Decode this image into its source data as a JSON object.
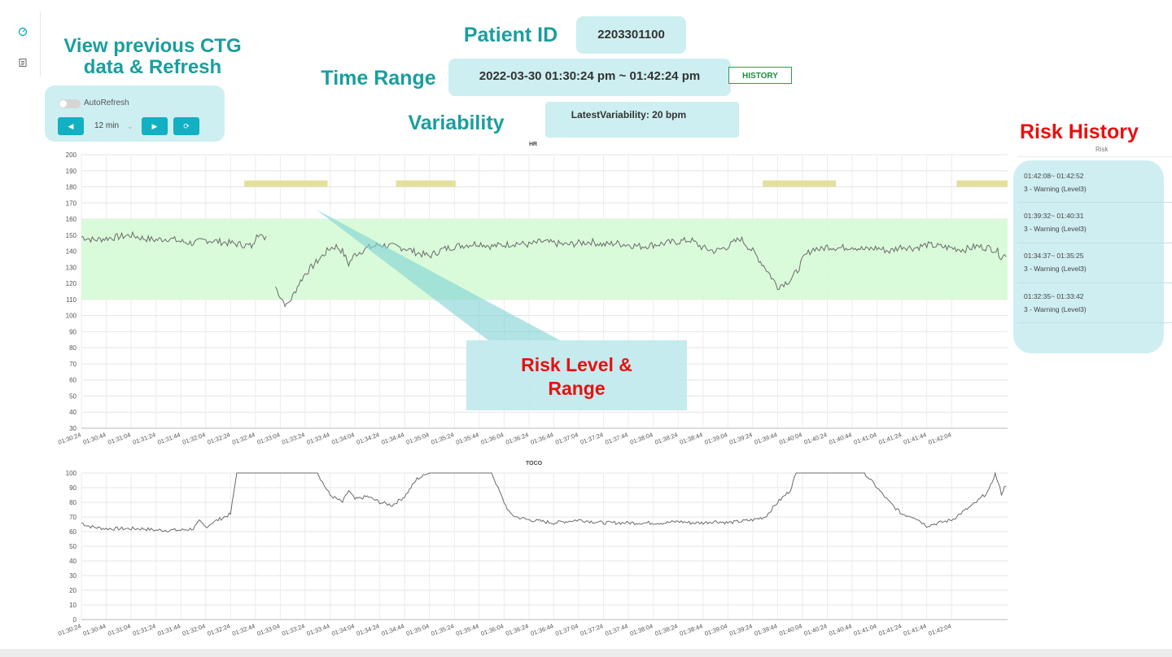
{
  "sidebar": {
    "icons": [
      "dashboard-icon",
      "document-icon"
    ]
  },
  "annotations": {
    "view_previous": "View previous CTG data & Refresh",
    "view_previous_line1": "View previous CTG",
    "view_previous_line2": "data & Refresh",
    "patient_id_label": "Patient ID",
    "time_range_label": "Time Range",
    "variability_label": "Variability",
    "risk_history_label": "Risk History",
    "risk_level_line1": "Risk Level &",
    "risk_level_line2": "Range"
  },
  "patient": {
    "id": "2203301100",
    "time_range": "2022-03-30 01:30:24 pm ~ 01:42:24 pm",
    "history_button": "HISTORY",
    "variability": "LatestVariability: 20 bpm"
  },
  "controls": {
    "autorefresh_label": "AutoRefresh",
    "autorefresh_on": false,
    "prev_icon": "caret-left-icon",
    "duration_value": "12 min",
    "next_icon": "caret-right-icon",
    "refresh_icon": "refresh-icon"
  },
  "risk_history": {
    "header": "Risk",
    "items": [
      {
        "range": "01:42:08~ 01:42:52",
        "level": "3 - Warning (Level3)"
      },
      {
        "range": "01:39:32~ 01:40:31",
        "level": "3 - Warning (Level3)"
      },
      {
        "range": "01:34:37~ 01:35:25",
        "level": "3 - Warning (Level3)"
      },
      {
        "range": "01:32:35~ 01:33:42",
        "level": "3 - Warning (Level3)"
      }
    ]
  },
  "colors": {
    "accent_teal": "#1a9e9e",
    "risk_red": "#e81010",
    "normal_band": "#d6fbd6",
    "risk_bar": "#e3df9e",
    "trace": "#6b6b6b",
    "history_green": "#22a249"
  },
  "chart_data": [
    {
      "type": "line",
      "title": "HR",
      "ylim": [
        30,
        200
      ],
      "yticks": [
        200,
        190,
        180,
        170,
        160,
        150,
        140,
        130,
        120,
        110,
        100,
        90,
        80,
        70,
        60,
        50,
        40,
        30
      ],
      "xticks": [
        "01:30:24",
        "01:30:44",
        "01:31:04",
        "01:31:24",
        "01:31:44",
        "01:32:04",
        "01:32:24",
        "01:32:44",
        "01:33:04",
        "01:33:24",
        "01:33:44",
        "01:34:04",
        "01:34:24",
        "01:34:44",
        "01:35:04",
        "01:35:24",
        "01:35:44",
        "01:36:04",
        "01:36:24",
        "01:36:44",
        "01:37:04",
        "01:37:24",
        "01:37:44",
        "01:38:04",
        "01:38:24",
        "01:38:44",
        "01:39:04",
        "01:39:24",
        "01:39:44",
        "01:40:04",
        "01:40:24",
        "01:40:44",
        "01:41:04",
        "01:41:24",
        "01:41:44",
        "01:42:04"
      ],
      "normal_range": [
        110,
        160
      ],
      "risk_ranges": [
        [
          "01:32:35",
          "01:33:42"
        ],
        [
          "01:34:37",
          "01:35:25"
        ],
        [
          "01:39:32",
          "01:40:31"
        ],
        [
          "01:42:08",
          "01:42:52"
        ]
      ],
      "series": [
        {
          "x_seconds": [
            0,
            10,
            20,
            30,
            40,
            50,
            60,
            70,
            80,
            90,
            100,
            110,
            120,
            130,
            138,
            141,
            146,
            150,
            152,
            155,
            160,
            170,
            180,
            190,
            200,
            210,
            220,
            230,
            240,
            250,
            260,
            270,
            280,
            290,
            300,
            310,
            320,
            330,
            340,
            350,
            360,
            370,
            380,
            390,
            400,
            410,
            420,
            430,
            440,
            450,
            460,
            470,
            480,
            490,
            500,
            510,
            520,
            530,
            540,
            550,
            560,
            570,
            576,
            581,
            586,
            590,
            595,
            600,
            610,
            620,
            630,
            640,
            650,
            660,
            670,
            680,
            690,
            700,
            710,
            720,
            731,
            737,
            740,
            745
          ],
          "values": [
            149,
            147,
            148,
            149,
            150,
            148,
            147,
            148,
            146,
            145,
            147,
            146,
            145,
            144,
            143,
            152,
            148,
            150,
            null,
            null,
            null,
            null,
            null,
            null,
            null,
            null,
            null,
            null,
            null,
            null,
            null,
            null,
            null,
            null,
            null,
            null,
            null,
            null,
            null,
            null,
            null,
            null,
            null,
            null,
            null,
            null,
            null,
            null,
            null,
            null,
            null,
            null,
            null,
            null,
            null,
            null,
            null,
            null,
            null,
            null,
            null,
            null,
            null,
            null,
            null,
            null,
            null,
            null,
            null,
            null,
            null,
            null,
            null,
            null,
            null,
            null,
            null,
            null,
            null,
            null,
            null,
            null,
            null,
            null
          ]
        },
        {
          "x_seconds": [
            156,
            160,
            165,
            170,
            175,
            180,
            190,
            200,
            205,
            210,
            215,
            220,
            230,
            240,
            250,
            260,
            270,
            280,
            290,
            300,
            310,
            320,
            330,
            340,
            350,
            360,
            370,
            380,
            390,
            400,
            410,
            420,
            430,
            440,
            450,
            460,
            470,
            480,
            490,
            500,
            510,
            520,
            530,
            540,
            550,
            560,
            570,
            576,
            581,
            586,
            590,
            595,
            600,
            610,
            620,
            630,
            640,
            650,
            660,
            670,
            680,
            690,
            700,
            710,
            720,
            731,
            737,
            740,
            745
          ],
          "values": [
            118,
            112,
            106,
            112,
            120,
            126,
            134,
            142,
            143,
            140,
            132,
            138,
            142,
            144,
            143,
            142,
            139,
            137,
            141,
            143,
            144,
            145,
            143,
            144,
            145,
            144,
            146,
            145,
            144,
            145,
            146,
            144,
            145,
            144,
            143,
            144,
            145,
            146,
            147,
            142,
            140,
            143,
            148,
            140,
            130,
            118,
            122,
            128,
            136,
            140,
            142,
            141,
            143,
            142,
            143,
            141,
            142,
            140,
            143,
            142,
            144,
            143,
            142,
            141,
            143,
            142,
            140,
            136,
            139
          ]
        }
      ]
    },
    {
      "type": "line",
      "title": "TOCO",
      "ylim": [
        0,
        100
      ],
      "yticks": [
        100,
        90,
        80,
        70,
        60,
        50,
        40,
        30,
        20,
        10,
        0
      ],
      "xticks": [
        "01:30:24",
        "01:30:44",
        "01:31:04",
        "01:31:24",
        "01:31:44",
        "01:32:04",
        "01:32:24",
        "01:32:44",
        "01:33:04",
        "01:33:24",
        "01:33:44",
        "01:34:04",
        "01:34:24",
        "01:34:44",
        "01:35:04",
        "01:35:24",
        "01:35:44",
        "01:36:04",
        "01:36:24",
        "01:36:44",
        "01:37:04",
        "01:37:24",
        "01:37:44",
        "01:38:04",
        "01:38:24",
        "01:38:44",
        "01:39:04",
        "01:39:24",
        "01:39:44",
        "01:40:04",
        "01:40:24",
        "01:40:44",
        "01:41:04",
        "01:41:24",
        "01:41:44",
        "01:42:04"
      ],
      "series": [
        {
          "x_seconds": [
            0,
            5,
            10,
            20,
            30,
            40,
            50,
            60,
            70,
            80,
            90,
            95,
            100,
            105,
            110,
            115,
            120,
            125,
            130,
            135,
            140,
            145,
            150,
            160,
            170,
            180,
            190,
            195,
            200,
            210,
            215,
            220,
            230,
            240,
            250,
            260,
            270,
            280,
            290,
            300,
            310,
            320,
            330,
            335,
            340,
            345,
            350,
            360,
            370,
            380,
            390,
            400,
            410,
            420,
            430,
            440,
            450,
            460,
            470,
            480,
            490,
            500,
            510,
            520,
            530,
            540,
            550,
            560,
            570,
            575,
            580,
            590,
            600,
            610,
            620,
            630,
            640,
            650,
            660,
            670,
            680,
            690,
            700,
            710,
            720,
            730,
            735,
            740,
            745
          ],
          "values": [
            66,
            64,
            63,
            62,
            62,
            62,
            62,
            61,
            61,
            61,
            62,
            67,
            63,
            66,
            68,
            70,
            72,
            100,
            100,
            100,
            100,
            100,
            100,
            100,
            100,
            100,
            100,
            92,
            85,
            80,
            88,
            82,
            84,
            80,
            78,
            84,
            96,
            100,
            100,
            100,
            100,
            100,
            100,
            90,
            80,
            72,
            70,
            68,
            67,
            66,
            67,
            68,
            67,
            66,
            66,
            66,
            66,
            66,
            66,
            67,
            66,
            66,
            67,
            66,
            67,
            68,
            70,
            80,
            88,
            100,
            100,
            100,
            100,
            100,
            100,
            100,
            90,
            80,
            72,
            70,
            64,
            66,
            68,
            74,
            80,
            88,
            100,
            86,
            94
          ]
        }
      ]
    }
  ]
}
